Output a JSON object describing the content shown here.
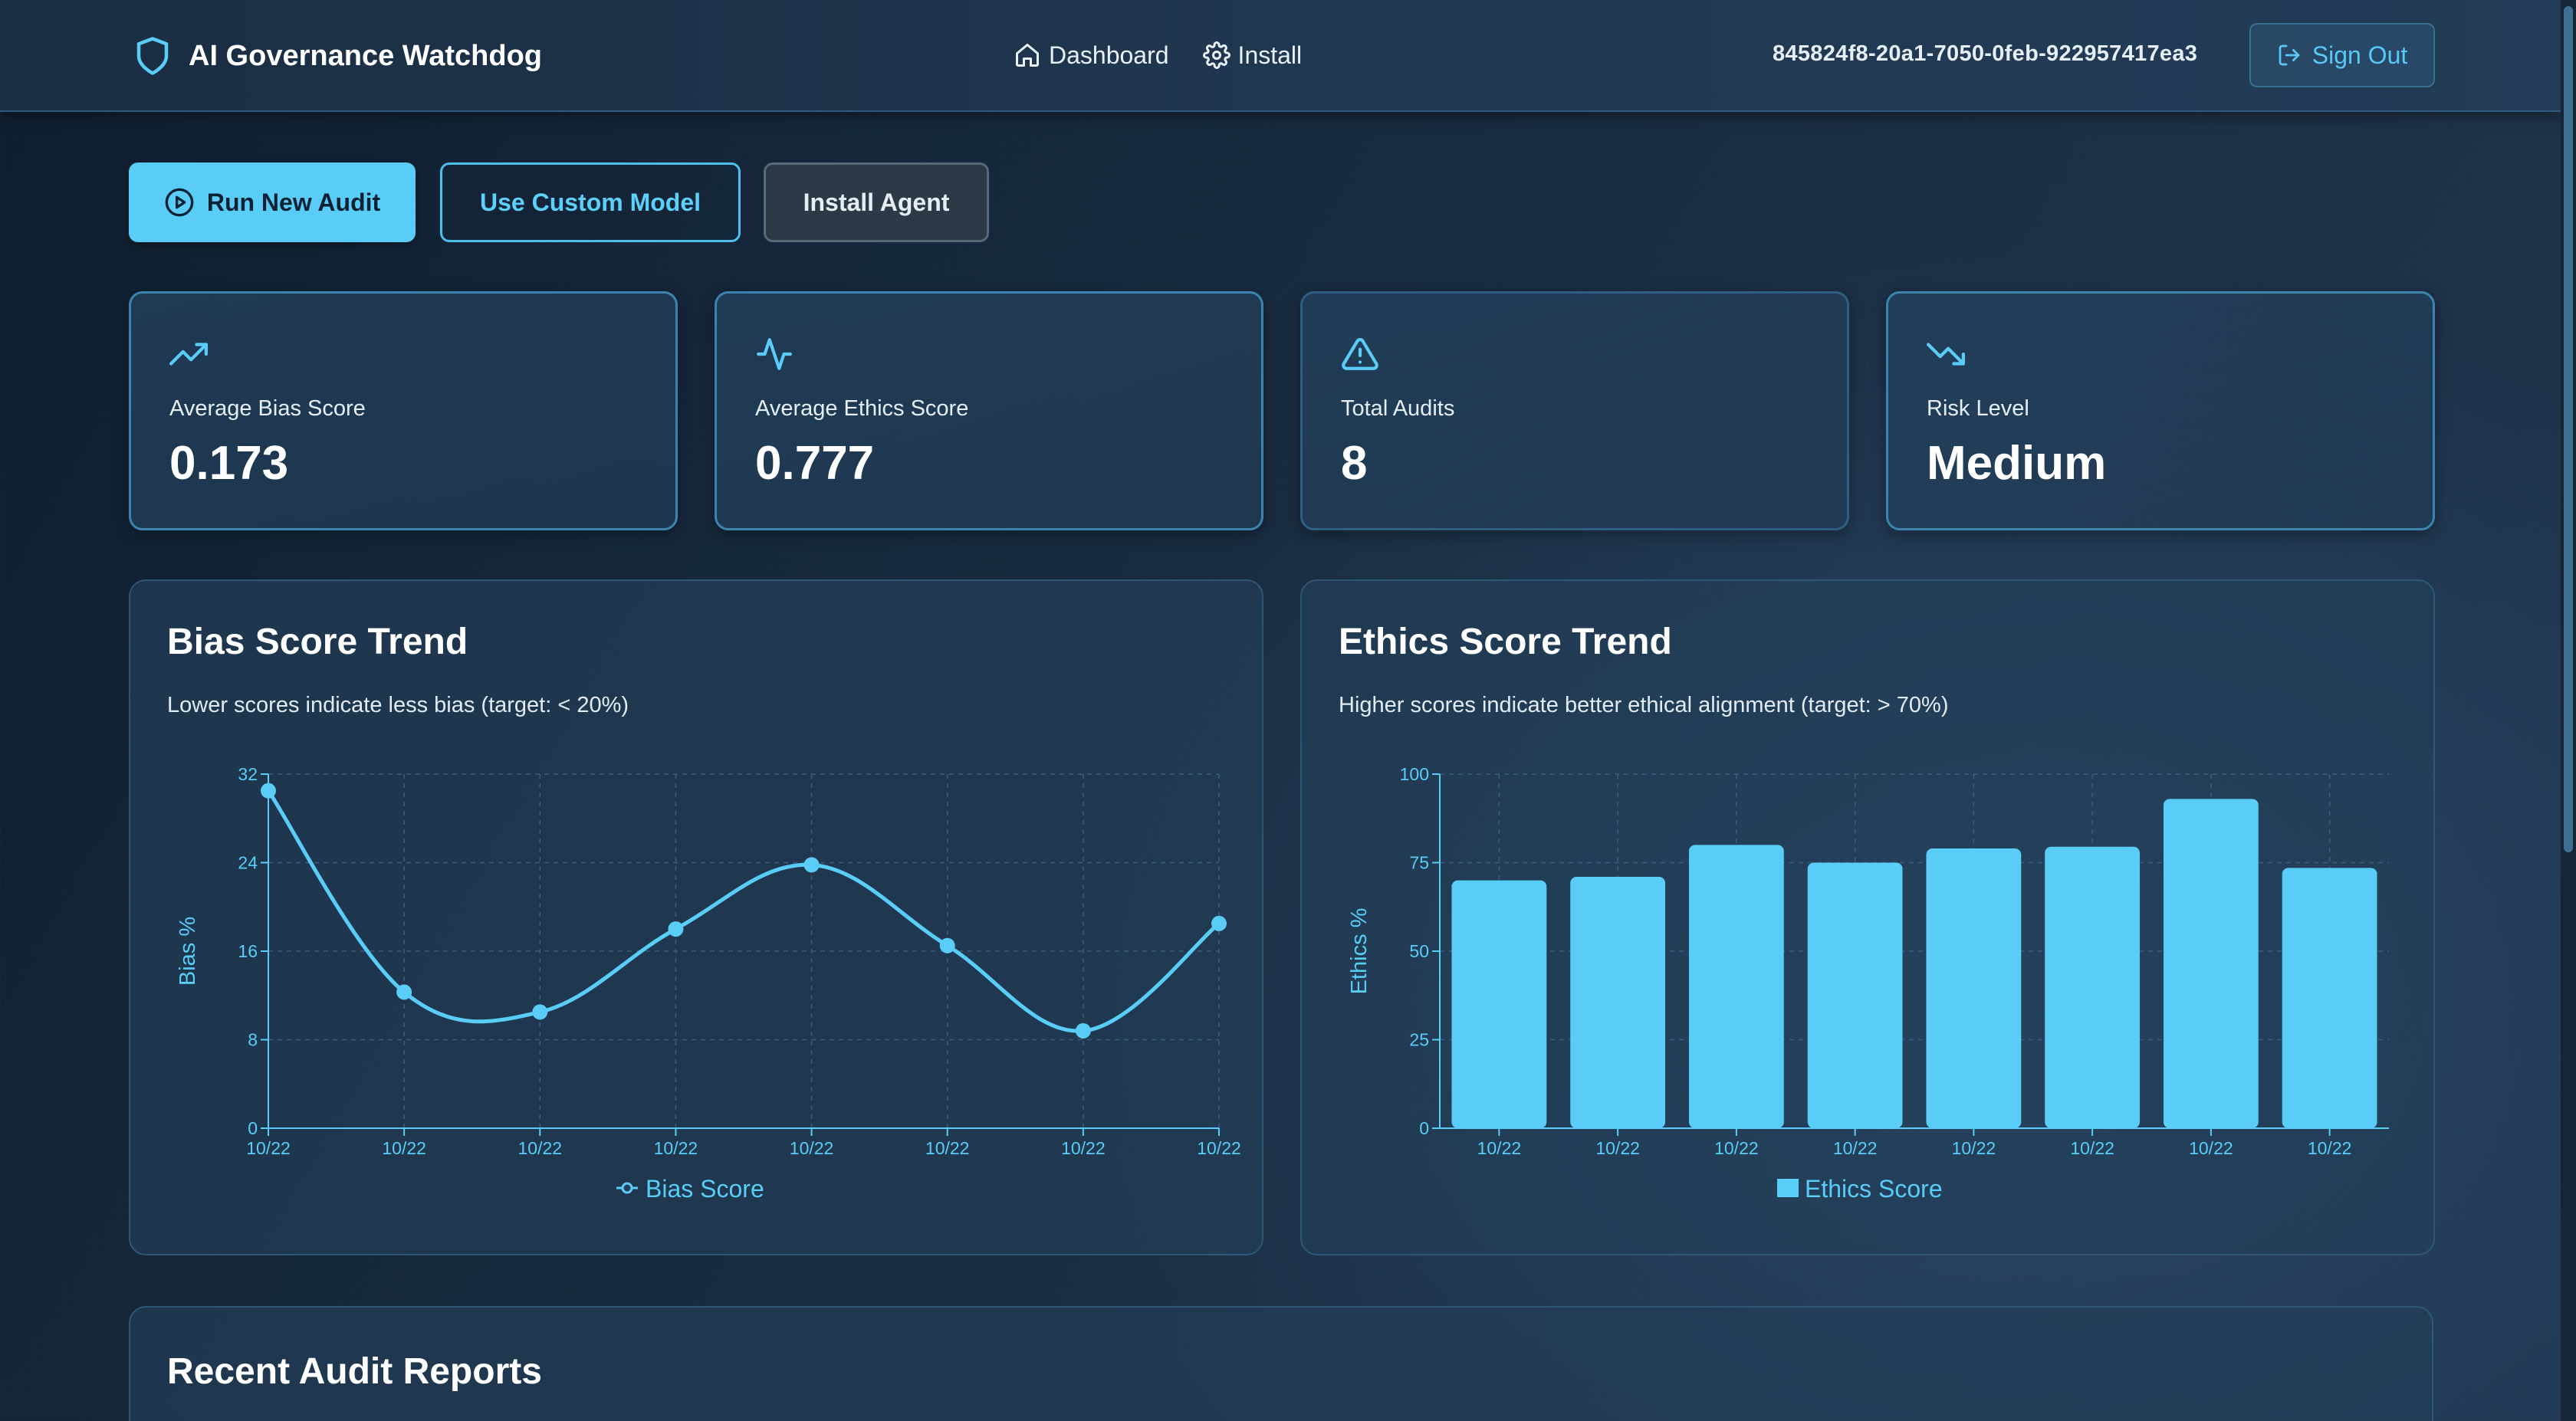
{
  "header": {
    "brand_title": "AI Governance Watchdog",
    "nav": [
      {
        "label": "Dashboard",
        "icon": "home-icon"
      },
      {
        "label": "Install",
        "icon": "gear-icon"
      }
    ],
    "user_id": "845824f8-20a1-7050-0feb-922957417ea3",
    "sign_out_label": "Sign Out"
  },
  "actions": {
    "run_label": "Run New Audit",
    "custom_label": "Use Custom Model",
    "install_label": "Install Agent"
  },
  "stats": [
    {
      "label": "Average Bias Score",
      "value": "0.173",
      "icon": "trending-up-icon"
    },
    {
      "label": "Average Ethics Score",
      "value": "0.777",
      "icon": "activity-icon"
    },
    {
      "label": "Total Audits",
      "value": "8",
      "icon": "alert-triangle-icon"
    },
    {
      "label": "Risk Level",
      "value": "Medium",
      "icon": "trending-down-icon"
    }
  ],
  "bias_panel": {
    "title": "Bias Score Trend",
    "subtitle": "Lower scores indicate less bias (target: < 20%)"
  },
  "ethics_panel": {
    "title": "Ethics Score Trend",
    "subtitle": "Higher scores indicate better ethical alignment (target: > 70%)"
  },
  "recent": {
    "title": "Recent Audit Reports"
  },
  "colors": {
    "accent": "#59cdf7",
    "border": "#3a84ad",
    "panel": "#233e58"
  },
  "chart_data": [
    {
      "type": "line",
      "title": "",
      "x": [
        "10/22",
        "10/22",
        "10/22",
        "10/22",
        "10/22",
        "10/22",
        "10/22",
        "10/22"
      ],
      "series": [
        {
          "name": "Bias Score",
          "values": [
            30.5,
            12.3,
            10.5,
            18.0,
            23.8,
            16.5,
            8.8,
            18.5
          ]
        }
      ],
      "ylabel": "Bias %",
      "ylim": [
        0,
        32
      ],
      "yticks": [
        0,
        8,
        16,
        24,
        32
      ],
      "grid": true,
      "legend": "bottom"
    },
    {
      "type": "bar",
      "title": "",
      "categories": [
        "10/22",
        "10/22",
        "10/22",
        "10/22",
        "10/22",
        "10/22",
        "10/22",
        "10/22"
      ],
      "series": [
        {
          "name": "Ethics Score",
          "values": [
            70,
            71,
            80,
            75,
            79,
            79.5,
            93,
            73.5
          ]
        }
      ],
      "ylabel": "Ethics %",
      "ylim": [
        0,
        100
      ],
      "yticks": [
        0,
        25,
        50,
        75,
        100
      ],
      "grid": true,
      "legend": "bottom"
    }
  ]
}
